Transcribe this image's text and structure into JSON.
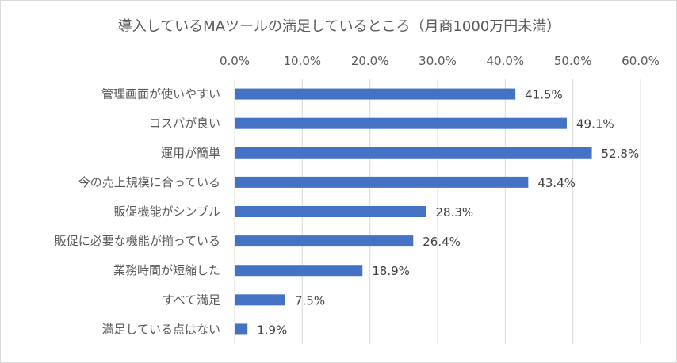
{
  "chart_data": {
    "type": "bar",
    "orientation": "horizontal",
    "title": "導入しているMAツールの満足しているところ（月商1000万円未満）",
    "categories": [
      "管理画面が使いやすい",
      "コスパが良い",
      "運用が簡単",
      "今の売上規模に合っている",
      "販促機能がシンプル",
      "販促に必要な機能が揃っている",
      "業務時間が短縮した",
      "すべて満足",
      "満足している点はない"
    ],
    "values": [
      41.5,
      49.1,
      52.8,
      43.4,
      28.3,
      26.4,
      18.9,
      7.5,
      1.9
    ],
    "data_labels": [
      "41.5%",
      "49.1%",
      "52.8%",
      "43.4%",
      "28.3%",
      "26.4%",
      "18.9%",
      "7.5%",
      "1.9%"
    ],
    "x_ticks": [
      "0.0%",
      "10.0%",
      "20.0%",
      "30.0%",
      "40.0%",
      "50.0%",
      "60.0%"
    ],
    "xlim": [
      0,
      60
    ],
    "x_axis_position": "top",
    "grid": true,
    "bar_color": "#4472c4",
    "legend": "none"
  }
}
